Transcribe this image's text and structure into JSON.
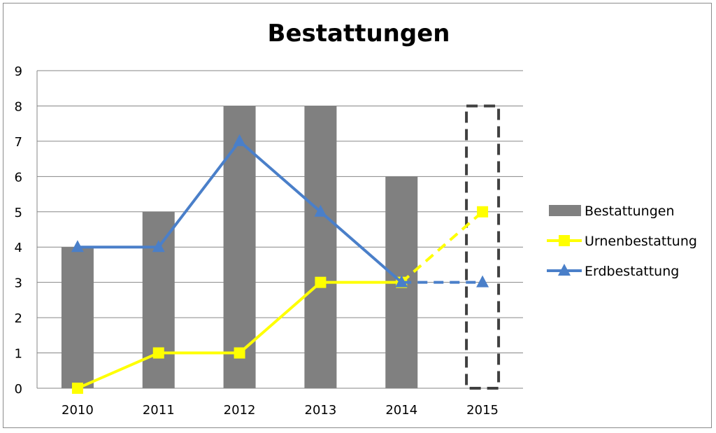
{
  "chart_data": {
    "type": "bar",
    "title": "Bestattungen",
    "categories": [
      "2010",
      "2011",
      "2012",
      "2013",
      "2014",
      "2015"
    ],
    "ylim": [
      0,
      9
    ],
    "yticks": [
      "0",
      "1",
      "2",
      "3",
      "4",
      "5",
      "6",
      "7",
      "8",
      "9"
    ],
    "grid": true,
    "legend_position": "right",
    "series": [
      {
        "name": "Bestattungen",
        "kind": "bar",
        "color": "#808080",
        "values": [
          4,
          5,
          8,
          8,
          6,
          8
        ],
        "projected_from_index": 5
      },
      {
        "name": "Urnenbestattung",
        "kind": "line",
        "marker": "square",
        "color": "#ffff00",
        "values": [
          0,
          1,
          1,
          3,
          3,
          5
        ],
        "projected_from_index": 4
      },
      {
        "name": "Erdbestattung",
        "kind": "line",
        "marker": "triangle",
        "color": "#4a7fc9",
        "values": [
          4,
          4,
          7,
          5,
          3,
          3
        ],
        "projected_from_index": 4
      }
    ]
  }
}
